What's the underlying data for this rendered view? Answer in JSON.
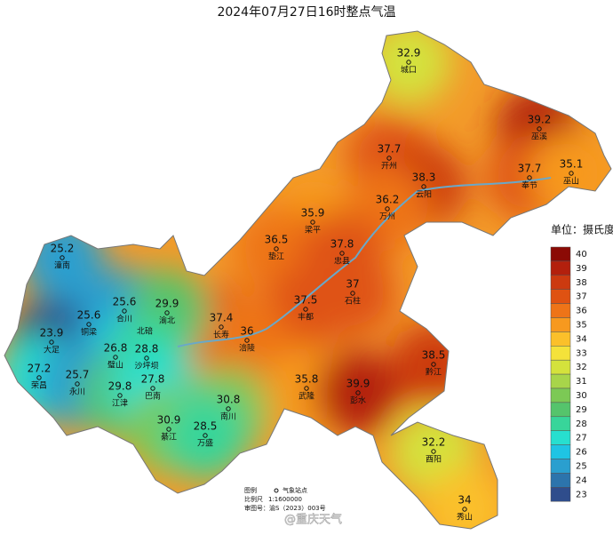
{
  "title": "2024年07月27日16时整点气温",
  "legend": {
    "title": "单位：摄氏度",
    "levels": [
      40,
      39,
      38,
      37,
      36,
      35,
      34,
      33,
      32,
      31,
      30,
      29,
      28,
      27,
      26,
      25,
      24,
      23
    ],
    "colors": [
      "#8b0a05",
      "#b3200d",
      "#cc3a10",
      "#df5212",
      "#ee7418",
      "#f7991f",
      "#fbc02a",
      "#f4e23a",
      "#d4e23c",
      "#a8d54a",
      "#7cc955",
      "#55c46c",
      "#38d59a",
      "#27dfcf",
      "#1fc4e4",
      "#2a9fcf",
      "#2c74ac",
      "#2f4d8c"
    ]
  },
  "stations": [
    {
      "name": "城口",
      "value": 32.9
    },
    {
      "name": "巫溪",
      "value": 39.2
    },
    {
      "name": "开州",
      "value": 37.7
    },
    {
      "name": "云阳",
      "value": 38.3
    },
    {
      "name": "奉节",
      "value": 37.7
    },
    {
      "name": "巫山",
      "value": 35.1
    },
    {
      "name": "万州",
      "value": 36.2
    },
    {
      "name": "梁平",
      "value": 35.9
    },
    {
      "name": "垫江",
      "value": 36.5
    },
    {
      "name": "忠县",
      "value": 37.8
    },
    {
      "name": "石柱",
      "value": 37
    },
    {
      "name": "丰都",
      "value": 37.5
    },
    {
      "name": "长寿",
      "value": 37.4
    },
    {
      "name": "涪陵",
      "value": 36
    },
    {
      "name": "潼南",
      "value": 25.2
    },
    {
      "name": "合川",
      "value": 25.6
    },
    {
      "name": "渝北",
      "value": 29.9
    },
    {
      "name": "铜梁",
      "value": 25.6
    },
    {
      "name": "大足",
      "value": 23.9
    },
    {
      "name": "璧山",
      "value": 26.8
    },
    {
      "name": "沙坪坝",
      "value": 28.8
    },
    {
      "name": "荣昌",
      "value": 27.2
    },
    {
      "name": "永川",
      "value": 25.7
    },
    {
      "name": "江津",
      "value": 29.8
    },
    {
      "name": "巴南",
      "value": 27.8
    },
    {
      "name": "南川",
      "value": 30.8
    },
    {
      "name": "綦江",
      "value": 30.9
    },
    {
      "name": "万盛",
      "value": 28.5
    },
    {
      "name": "武隆",
      "value": 35.8
    },
    {
      "name": "彭水",
      "value": 39.9
    },
    {
      "name": "黔江",
      "value": 38.5
    },
    {
      "name": "酉阳",
      "value": 32.2
    },
    {
      "name": "秀山",
      "value": 34
    }
  ],
  "place_labels": [
    "北碚"
  ],
  "footer": {
    "legend_label": "图例",
    "legend_item": "气象站点",
    "scale_label": "比例尺",
    "scale": "1:1600000",
    "map_number": "审图号：渝S（2023）003号"
  },
  "watermark": "@重庆天气"
}
